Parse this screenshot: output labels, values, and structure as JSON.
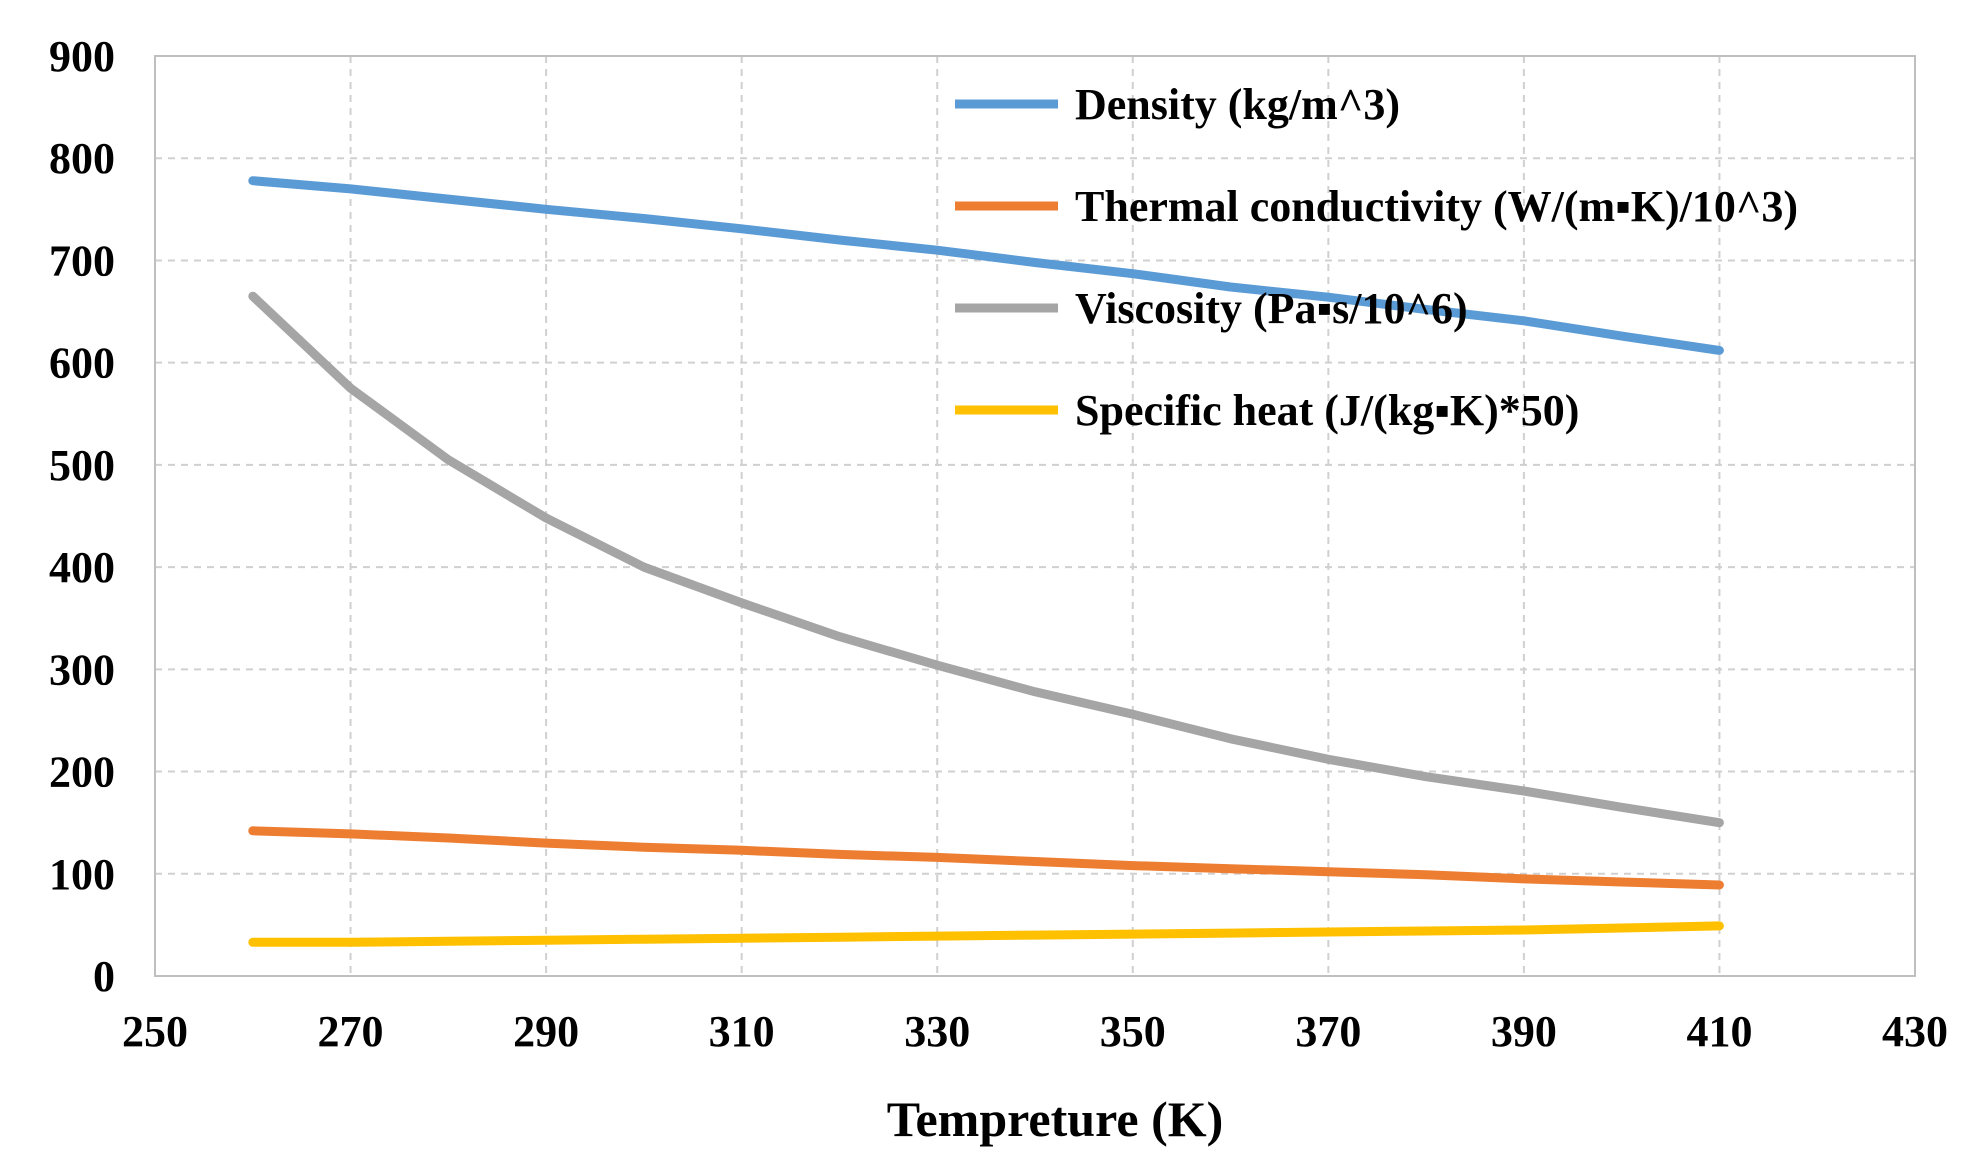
{
  "chart_data": {
    "type": "line",
    "title": "",
    "xlabel": "Tempreture (K)",
    "ylabel": "",
    "xlim": [
      250,
      430
    ],
    "ylim": [
      0,
      900
    ],
    "xticks": [
      250,
      270,
      290,
      310,
      330,
      350,
      370,
      390,
      410,
      430
    ],
    "yticks": [
      0,
      100,
      200,
      300,
      400,
      500,
      600,
      700,
      800,
      900
    ],
    "grid": true,
    "legend_position": "top-right",
    "x": [
      260,
      270,
      280,
      290,
      300,
      310,
      320,
      330,
      340,
      350,
      360,
      370,
      380,
      390,
      400,
      410
    ],
    "series": [
      {
        "name": "Density (kg/m^3)",
        "color": "#5b9bd5",
        "values": [
          778,
          770,
          760,
          750,
          741,
          731,
          720,
          710,
          698,
          687,
          674,
          664,
          652,
          641,
          626,
          612
        ]
      },
      {
        "name": "Thermal conductivity (W/(m▪K)/10^3)",
        "color": "#ed7d31",
        "values": [
          142,
          139,
          135,
          130,
          126,
          123,
          119,
          116,
          112,
          108,
          105,
          102,
          99,
          95,
          92,
          89
        ]
      },
      {
        "name": "Viscosity (Pa▪s/10^6)",
        "color": "#a5a5a5",
        "values": [
          665,
          575,
          505,
          448,
          400,
          365,
          332,
          304,
          278,
          256,
          232,
          212,
          195,
          181,
          165,
          150
        ]
      },
      {
        "name": "Specific heat (J/(kg▪K)*50)",
        "color": "#ffc000",
        "values": [
          33,
          33,
          34,
          35,
          36,
          37,
          38,
          39,
          40,
          41,
          42,
          43,
          44,
          45,
          47,
          49
        ]
      }
    ]
  }
}
